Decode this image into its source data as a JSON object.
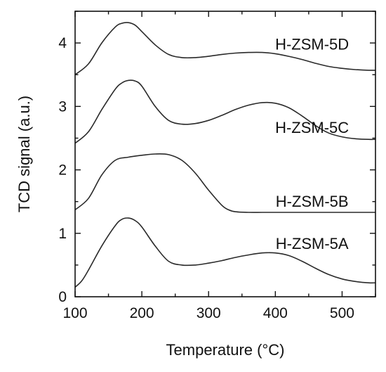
{
  "chart_data": {
    "type": "line",
    "xlabel": "Temperature (°C)",
    "ylabel": "TCD signal (a.u.)",
    "xlim": [
      100,
      550
    ],
    "ylim": [
      0,
      4.5
    ],
    "x_ticks": [
      100,
      200,
      300,
      400,
      500
    ],
    "y_ticks": [
      0,
      1,
      2,
      3,
      4
    ],
    "line_color": "#2a2a2a",
    "series": [
      {
        "name": "H-ZSM-5D",
        "x": [
          100,
          120,
          140,
          160,
          170,
          180,
          190,
          200,
          220,
          240,
          260,
          280,
          300,
          320,
          340,
          360,
          380,
          400,
          420,
          440,
          460,
          480,
          500,
          520,
          540,
          550
        ],
        "y": [
          3.5,
          3.67,
          4.0,
          4.25,
          4.31,
          4.32,
          4.28,
          4.18,
          3.97,
          3.82,
          3.77,
          3.77,
          3.79,
          3.82,
          3.84,
          3.85,
          3.85,
          3.83,
          3.79,
          3.74,
          3.68,
          3.63,
          3.6,
          3.58,
          3.57,
          3.57
        ]
      },
      {
        "name": "H-ZSM-5C",
        "x": [
          100,
          120,
          140,
          160,
          170,
          180,
          190,
          200,
          220,
          240,
          260,
          280,
          300,
          320,
          340,
          360,
          380,
          400,
          420,
          440,
          460,
          480,
          500,
          520,
          540,
          550
        ],
        "y": [
          2.42,
          2.6,
          2.95,
          3.27,
          3.37,
          3.41,
          3.4,
          3.32,
          3.0,
          2.78,
          2.72,
          2.73,
          2.78,
          2.86,
          2.95,
          3.02,
          3.06,
          3.05,
          2.98,
          2.85,
          2.7,
          2.58,
          2.52,
          2.49,
          2.48,
          2.48
        ]
      },
      {
        "name": "H-ZSM-5B",
        "x": [
          100,
          120,
          140,
          160,
          180,
          200,
          220,
          240,
          260,
          280,
          300,
          320,
          330,
          340,
          360,
          380,
          400,
          450,
          500,
          550
        ],
        "y": [
          1.37,
          1.55,
          1.92,
          2.15,
          2.2,
          2.23,
          2.25,
          2.24,
          2.15,
          1.95,
          1.68,
          1.44,
          1.37,
          1.34,
          1.33,
          1.33,
          1.33,
          1.33,
          1.33,
          1.33
        ]
      },
      {
        "name": "H-ZSM-5A",
        "x": [
          100,
          110,
          120,
          140,
          160,
          170,
          180,
          190,
          200,
          220,
          240,
          260,
          280,
          300,
          320,
          340,
          360,
          380,
          400,
          420,
          440,
          460,
          480,
          500,
          520,
          540,
          550
        ],
        "y": [
          0.15,
          0.25,
          0.42,
          0.8,
          1.12,
          1.22,
          1.24,
          1.2,
          1.1,
          0.8,
          0.56,
          0.5,
          0.5,
          0.53,
          0.57,
          0.62,
          0.66,
          0.69,
          0.69,
          0.65,
          0.56,
          0.45,
          0.35,
          0.28,
          0.24,
          0.22,
          0.22
        ]
      }
    ]
  }
}
